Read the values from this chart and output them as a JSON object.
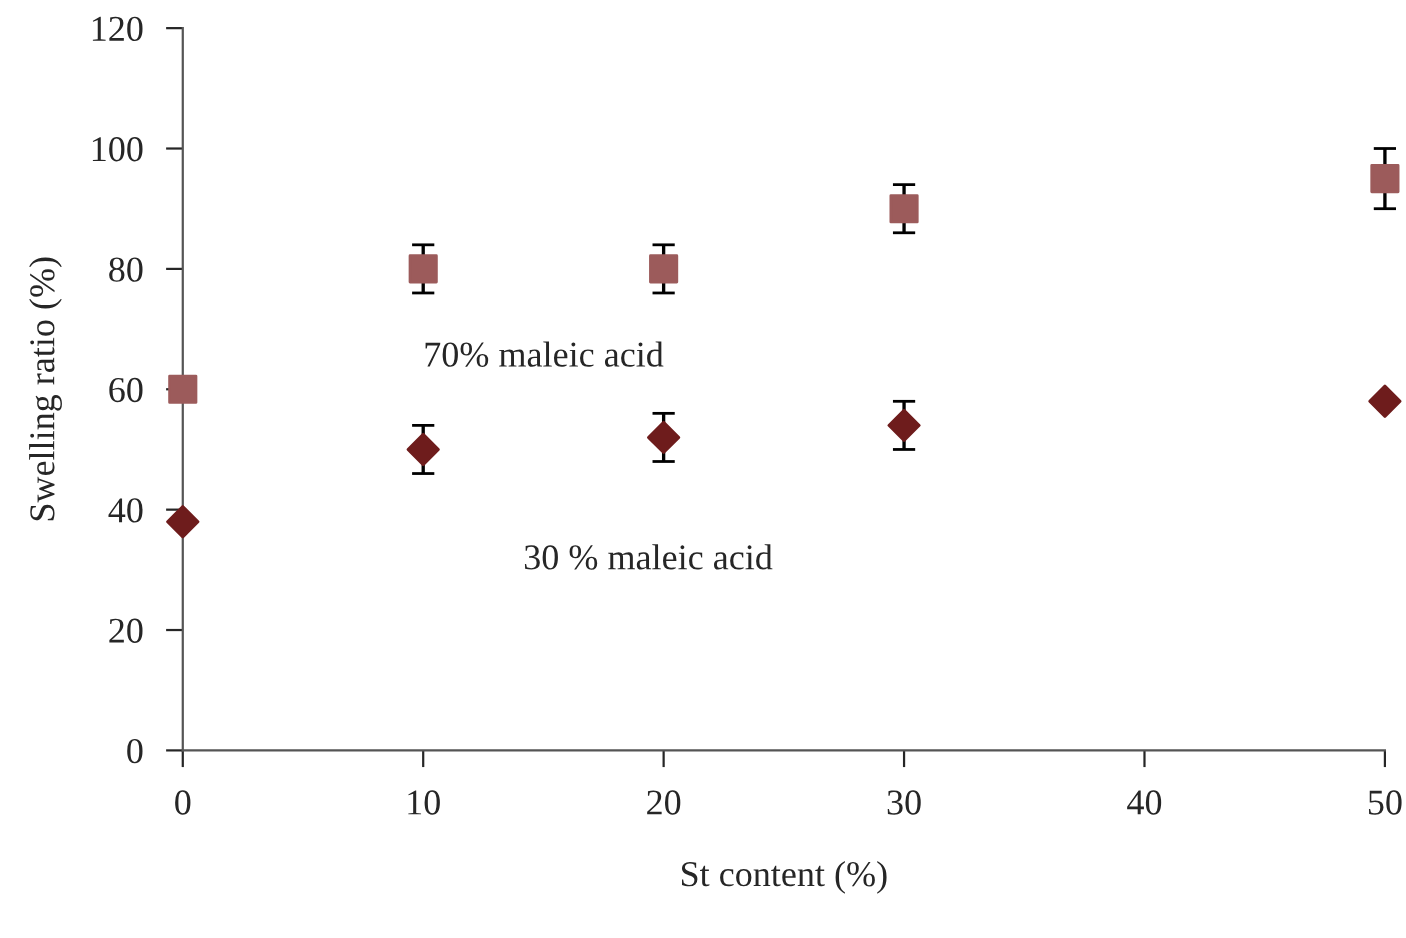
{
  "chart_data": {
    "type": "scatter",
    "xlabel": "St content (%)",
    "ylabel": "Swelling ratio (%)",
    "x": [
      0,
      10,
      20,
      30,
      50
    ],
    "series": [
      {
        "name": "70% maleic acid",
        "color": "#9c5b5b",
        "marker": "square",
        "values": [
          60,
          80,
          80,
          90,
          95
        ],
        "errors": [
          2,
          4,
          4,
          4,
          5
        ]
      },
      {
        "name": "30 % maleic acid",
        "color": "#6e1c1c",
        "marker": "diamond",
        "values": [
          38,
          50,
          52,
          54,
          58
        ],
        "errors": [
          null,
          4,
          4,
          4,
          null
        ]
      }
    ],
    "xlim": [
      0,
      50
    ],
    "xticks": [
      0,
      10,
      20,
      30,
      40,
      50
    ],
    "ylim": [
      0,
      120
    ],
    "yticks": [
      0,
      20,
      40,
      60,
      80,
      100,
      120
    ],
    "grid": false,
    "legend": false
  }
}
